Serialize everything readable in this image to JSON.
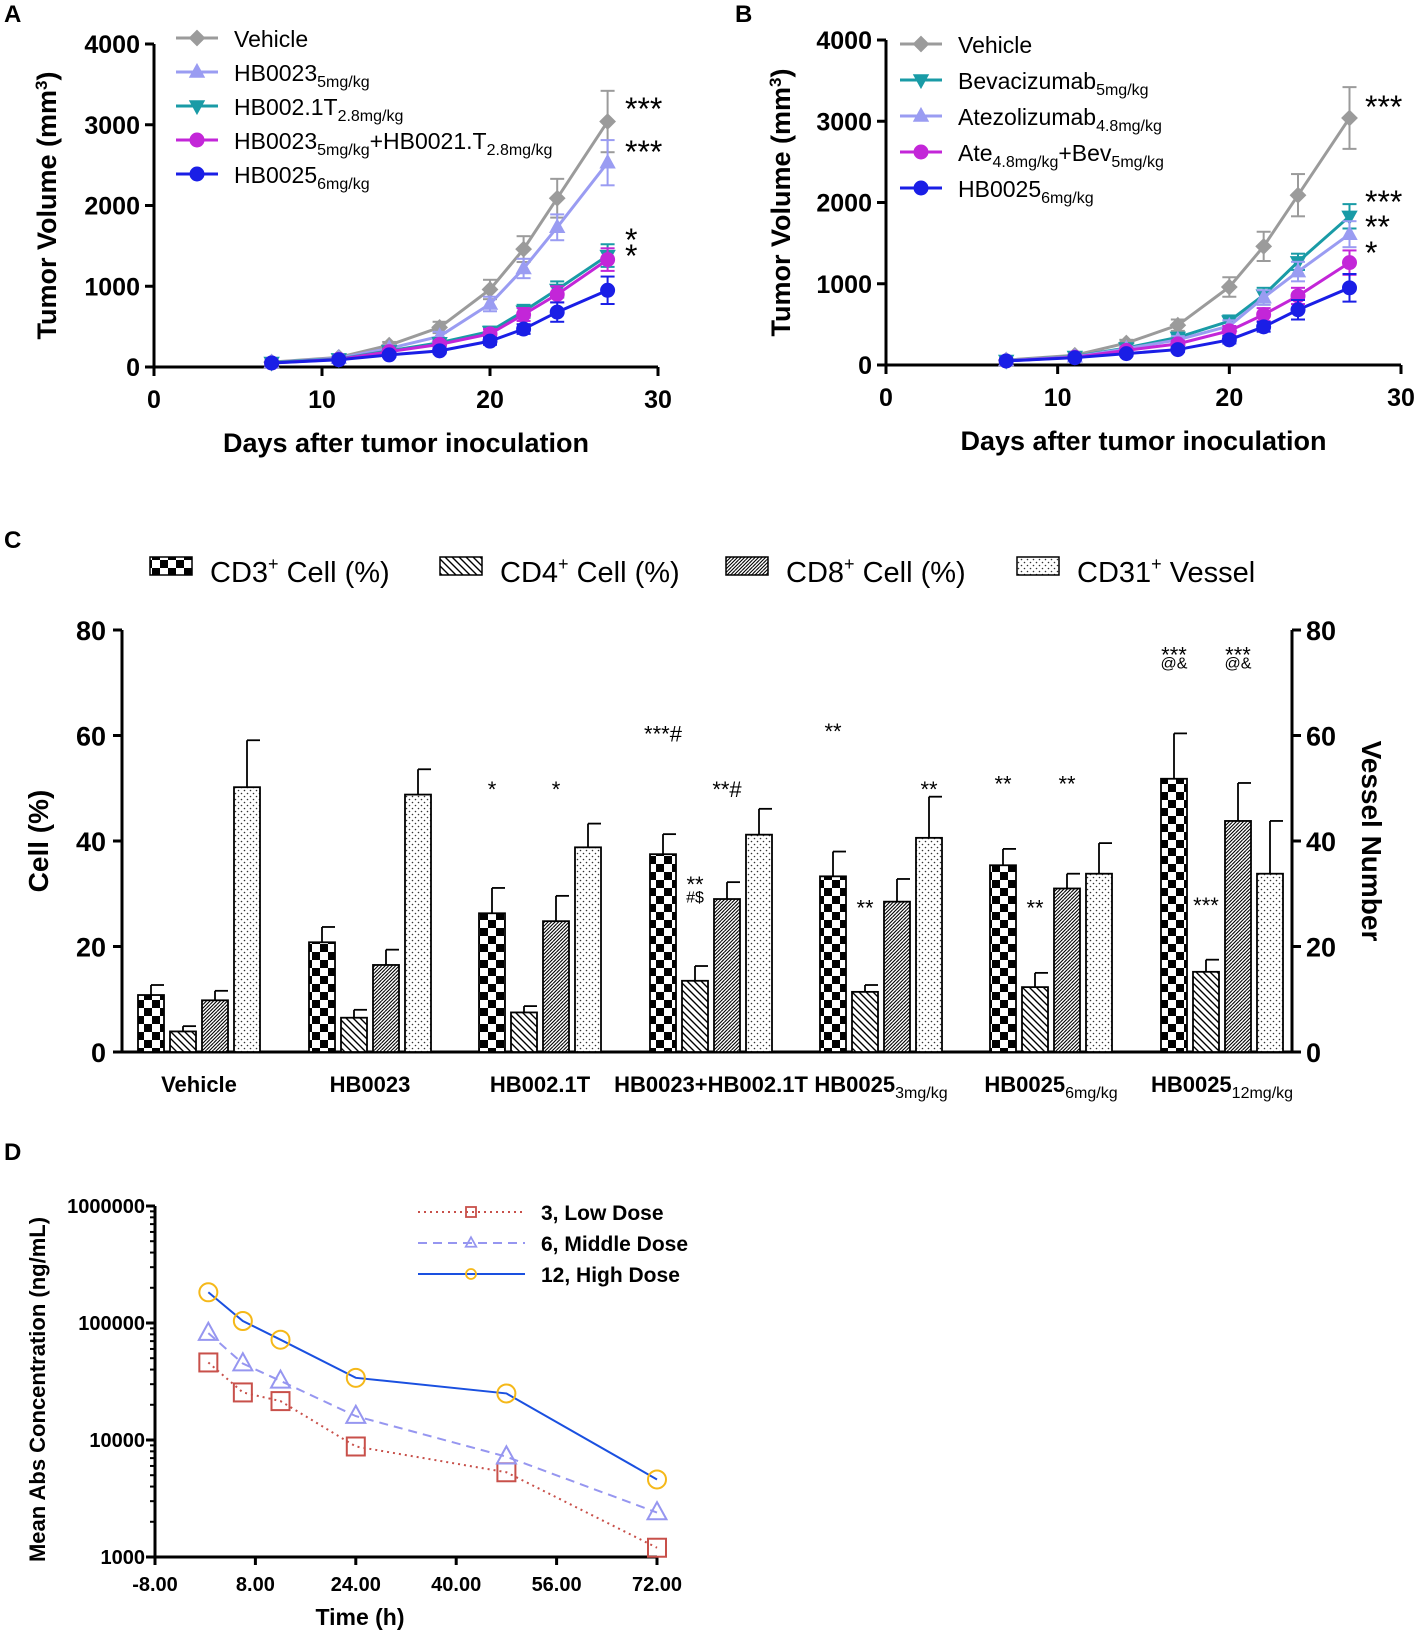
{
  "chart_data": [
    {
      "id": "A",
      "type": "line",
      "panel_label": "A",
      "xlabel": "Days after tumor inoculation",
      "ylabel": "Tumor Volume (mm³)",
      "xlim": [
        0,
        30
      ],
      "ylim": [
        0,
        4000
      ],
      "xticks": [
        "0",
        "10",
        "20",
        "30"
      ],
      "yticks": [
        "0",
        "1000",
        "2000",
        "3000",
        "4000"
      ],
      "x": [
        7,
        11,
        14,
        17,
        20,
        22,
        24,
        27
      ],
      "series": [
        {
          "name": "Vehicle",
          "sub": "",
          "name2": "",
          "sub2": "",
          "color": "#9b9b9b",
          "marker": "diamond",
          "values": [
            60,
            120,
            270,
            490,
            960,
            1460,
            2090,
            3040
          ],
          "err": [
            25,
            30,
            40,
            70,
            120,
            160,
            240,
            380
          ],
          "sig": "***"
        },
        {
          "name": "HB0023",
          "sub": "5mg/kg",
          "name2": "",
          "sub2": "",
          "color": "#9a9cf2",
          "marker": "triangle",
          "values": [
            55,
            110,
            230,
            380,
            780,
            1220,
            1730,
            2530
          ],
          "err": [
            20,
            25,
            35,
            55,
            90,
            120,
            160,
            280
          ],
          "sig": "***"
        },
        {
          "name": "HB002.1T",
          "sub": "2.8mg/kg",
          "name2": "",
          "sub2": "",
          "color": "#199ba6",
          "marker": "triangle-down",
          "values": [
            55,
            100,
            200,
            300,
            440,
            690,
            960,
            1380
          ],
          "err": [
            20,
            25,
            30,
            40,
            60,
            80,
            100,
            140
          ],
          "sig": "*"
        },
        {
          "name": "HB0023",
          "sub": "5mg/kg",
          "name2": "+HB0021.T",
          "sub2": "2.8mg/kg",
          "color": "#c326d8",
          "marker": "circle",
          "values": [
            50,
            95,
            190,
            280,
            410,
            650,
            900,
            1330
          ],
          "err": [
            20,
            25,
            30,
            40,
            60,
            80,
            100,
            140
          ],
          "sig": "*"
        },
        {
          "name": "HB0025",
          "sub": "6mg/kg",
          "name2": "",
          "sub2": "",
          "color": "#1a1ee6",
          "marker": "circle",
          "values": [
            50,
            90,
            150,
            200,
            320,
            470,
            680,
            950
          ],
          "err": [
            15,
            20,
            25,
            30,
            45,
            60,
            120,
            170
          ],
          "sig": ""
        }
      ]
    },
    {
      "id": "B",
      "type": "line",
      "panel_label": "B",
      "xlabel": "Days after tumor inoculation",
      "ylabel": "Tumor Volume (mm³)",
      "xlim": [
        0,
        30
      ],
      "ylim": [
        0,
        4000
      ],
      "xticks": [
        "0",
        "10",
        "20",
        "30"
      ],
      "yticks": [
        "0",
        "1000",
        "2000",
        "3000",
        "4000"
      ],
      "x": [
        7,
        11,
        14,
        17,
        20,
        22,
        24,
        27
      ],
      "series": [
        {
          "name": "Vehicle",
          "sub": "",
          "name2": "",
          "sub2": "",
          "color": "#9b9b9b",
          "marker": "diamond",
          "values": [
            60,
            120,
            270,
            490,
            960,
            1460,
            2090,
            3040
          ],
          "err": [
            25,
            30,
            40,
            70,
            120,
            180,
            260,
            380
          ],
          "sig": "***"
        },
        {
          "name": "Bevacizumab",
          "sub": "5mg/kg",
          "name2": "",
          "sub2": "",
          "color": "#199ba6",
          "marker": "triangle-down",
          "values": [
            55,
            105,
            210,
            340,
            540,
            860,
            1270,
            1830
          ],
          "err": [
            20,
            25,
            30,
            45,
            70,
            90,
            100,
            150
          ],
          "sig": "***"
        },
        {
          "name": "Atezolizumab",
          "sub": "4.8mg/kg",
          "name2": "",
          "sub2": "",
          "color": "#9a9cf2",
          "marker": "triangle",
          "values": [
            55,
            100,
            200,
            310,
            480,
            830,
            1150,
            1610
          ],
          "err": [
            20,
            25,
            30,
            45,
            70,
            90,
            120,
            160
          ],
          "sig": "**"
        },
        {
          "name": "Ate",
          "sub": "4.8mg/kg",
          "name2": "+Bev",
          "sub2": "5mg/kg",
          "color": "#c326d8",
          "marker": "circle",
          "values": [
            50,
            95,
            180,
            260,
            420,
            620,
            850,
            1260
          ],
          "err": [
            20,
            25,
            30,
            40,
            60,
            80,
            100,
            150
          ],
          "sig": "*"
        },
        {
          "name": "HB0025",
          "sub": "6mg/kg",
          "name2": "",
          "sub2": "",
          "color": "#1a1ee6",
          "marker": "circle",
          "values": [
            50,
            90,
            140,
            190,
            310,
            470,
            680,
            950
          ],
          "err": [
            15,
            20,
            25,
            30,
            45,
            60,
            120,
            170
          ],
          "sig": ""
        }
      ]
    },
    {
      "id": "C",
      "type": "bar",
      "panel_label": "C",
      "ylabel": "Cell (%)",
      "y2label": "Vessel Number",
      "ylim": [
        0,
        80
      ],
      "yticks": [
        "0",
        "20",
        "40",
        "60",
        "80"
      ],
      "legend": [
        {
          "name": "CD3",
          "sup": "+",
          "rest": " Cell (%)",
          "pattern": "check"
        },
        {
          "name": "CD4",
          "sup": "+",
          "rest": " Cell (%)",
          "pattern": "hatchR"
        },
        {
          "name": "CD8",
          "sup": "+",
          "rest": " Cell (%)",
          "pattern": "hatchL"
        },
        {
          "name": "CD31",
          "sup": "+",
          "rest": " Vessel",
          "pattern": "dots"
        }
      ],
      "categories": [
        {
          "name": "Vehicle",
          "sub": ""
        },
        {
          "name": "HB0023",
          "sub": ""
        },
        {
          "name": "HB002.1T",
          "sub": ""
        },
        {
          "name": "HB0023+HB002.1T",
          "sub": ""
        },
        {
          "name": "HB0025",
          "sub": "3mg/kg"
        },
        {
          "name": "HB0025",
          "sub": "6mg/kg"
        },
        {
          "name": "HB0025",
          "sub": "12mg/kg"
        }
      ],
      "series": [
        {
          "name": "CD3+ Cell (%)",
          "values": [
            10.8,
            20.8,
            26.3,
            37.5,
            33.3,
            35.4,
            51.8
          ],
          "err": [
            1.9,
            2.9,
            4.8,
            3.8,
            4.7,
            3.1,
            8.6
          ]
        },
        {
          "name": "CD4+ Cell (%)",
          "values": [
            3.9,
            6.5,
            7.5,
            13.5,
            11.4,
            12.3,
            15.2
          ],
          "err": [
            1.0,
            1.5,
            1.2,
            2.8,
            1.3,
            2.7,
            2.3
          ]
        },
        {
          "name": "CD8+ Cell (%)",
          "values": [
            9.8,
            16.5,
            24.8,
            29.0,
            28.5,
            31.0,
            43.8
          ],
          "err": [
            1.8,
            2.9,
            4.8,
            3.2,
            4.3,
            2.8,
            7.2
          ]
        },
        {
          "name": "CD31+ Vessel",
          "values": [
            50.2,
            48.8,
            38.8,
            41.2,
            40.6,
            33.8,
            33.8
          ],
          "err": [
            8.9,
            4.8,
            4.5,
            4.9,
            7.8,
            5.8,
            10.0
          ]
        }
      ],
      "annotations": [
        {
          "text": "*",
          "group": 2,
          "bar": 0,
          "y": 51
        },
        {
          "text": "*",
          "group": 2,
          "bar": 2,
          "y": 51
        },
        {
          "text": "***#",
          "group": 3,
          "bar": 0,
          "y": 61.5
        },
        {
          "text": "**#",
          "group": 3,
          "bar": 2,
          "y": 51
        },
        {
          "text": "**",
          "group": 3,
          "bar": 1,
          "y": 33
        },
        {
          "text": "#$",
          "group": 3,
          "bar": 1,
          "y": 29.5,
          "small": true
        },
        {
          "text": "**",
          "group": 4,
          "bar": 0,
          "y": 62
        },
        {
          "text": "**",
          "group": 4,
          "bar": 1,
          "y": 28.5
        },
        {
          "text": "**",
          "group": 4,
          "bar": 3,
          "y": 51
        },
        {
          "text": "**",
          "group": 5,
          "bar": 0,
          "y": 52
        },
        {
          "text": "**",
          "group": 5,
          "bar": 1,
          "y": 28.5
        },
        {
          "text": "**",
          "group": 5,
          "bar": 2,
          "y": 52
        },
        {
          "text": "***",
          "group": 6,
          "bar": 0,
          "y": 76.5
        },
        {
          "text": "@&",
          "group": 6,
          "bar": 0,
          "y": 73.8,
          "small": true
        },
        {
          "text": "***",
          "group": 6,
          "bar": 2,
          "y": 76.5
        },
        {
          "text": "@&",
          "group": 6,
          "bar": 2,
          "y": 73.8,
          "small": true
        },
        {
          "text": "***",
          "group": 6,
          "bar": 1,
          "y": 29
        }
      ]
    },
    {
      "id": "D",
      "type": "line",
      "panel_label": "D",
      "xlabel": "Time (h)",
      "ylabel": "Mean Abs Concentration (ng/mL)",
      "yscale": "log",
      "xlim": [
        -8,
        72
      ],
      "ylim": [
        1000,
        1000000
      ],
      "xticks": [
        "-8.00",
        "8.00",
        "24.00",
        "40.00",
        "56.00",
        "72.00"
      ],
      "yticks": [
        "1000",
        "10000",
        "100000",
        "1000000"
      ],
      "x": [
        0.5,
        6,
        12,
        24,
        48,
        72
      ],
      "series": [
        {
          "name": "3, Low Dose",
          "color": "#c8504a",
          "marker": "square",
          "dash": "2,4",
          "values": [
            46000,
            25500,
            21500,
            8800,
            5300,
            1200
          ]
        },
        {
          "name": "6, Middle Dose",
          "color": "#9696f0",
          "marker": "triangle",
          "dash": "9,6",
          "values": [
            82000,
            45000,
            32000,
            16000,
            7200,
            2400
          ]
        },
        {
          "name": "12, High Dose",
          "color": "#1a50e0",
          "marker": "circle",
          "dash": "",
          "values": [
            183000,
            104000,
            72000,
            34000,
            25000,
            4600
          ]
        }
      ]
    }
  ]
}
